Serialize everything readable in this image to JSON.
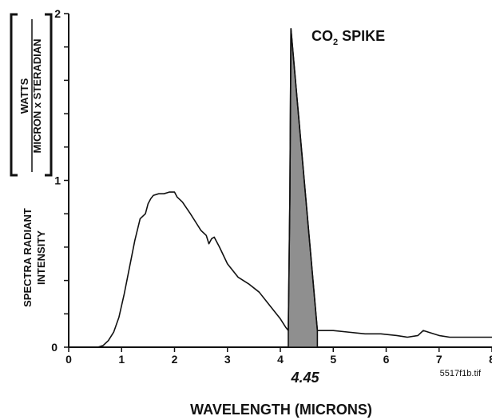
{
  "chart_data": {
    "type": "line",
    "title": {
      "text": "CO",
      "sub": "2",
      "suffix": " SPIKE"
    },
    "xlabel": "WAVELENGTH (MICRONS)",
    "ylabel": {
      "main_line1": "SPECTRA RADIANT",
      "main_line2": "INTENSITY",
      "unit_numerator": "WATTS",
      "unit_denominator": "MICRON x STERADIAN"
    },
    "xlim": [
      0,
      8
    ],
    "ylim": [
      0,
      2
    ],
    "x_ticks": [
      "0",
      "1",
      "2",
      "3",
      "4",
      "5",
      "6",
      "7",
      "8"
    ],
    "y_ticks": [
      {
        "label": "0",
        "value": 0
      },
      {
        "label": "1",
        "value": 1
      },
      {
        "label": "2",
        "value": 2
      }
    ],
    "y_minor_step": 0.2,
    "annotation": {
      "text": "4.45",
      "x": 4.45
    },
    "footnote": "5517f1b.tif",
    "series": [
      {
        "x": [
          0.55,
          0.65,
          0.75,
          0.85,
          0.95,
          1.05,
          1.15,
          1.25,
          1.35,
          1.45,
          1.5,
          1.55,
          1.6,
          1.7,
          1.8,
          1.9,
          2.0,
          2.05,
          2.15,
          2.3,
          2.4,
          2.5,
          2.6,
          2.65,
          2.7,
          2.75,
          2.85,
          3.0,
          3.2,
          3.4,
          3.6,
          3.8,
          4.0,
          4.1,
          4.15,
          4.18,
          4.2,
          4.7,
          5.0,
          5.3,
          5.6,
          5.9,
          6.2,
          6.4,
          6.6,
          6.7,
          6.8,
          7.0,
          7.2,
          7.5,
          8.0
        ],
        "values": [
          0.0,
          0.01,
          0.04,
          0.09,
          0.18,
          0.32,
          0.48,
          0.64,
          0.77,
          0.8,
          0.86,
          0.89,
          0.91,
          0.92,
          0.92,
          0.93,
          0.93,
          0.9,
          0.87,
          0.8,
          0.75,
          0.7,
          0.67,
          0.62,
          0.65,
          0.66,
          0.6,
          0.5,
          0.42,
          0.38,
          0.33,
          0.25,
          0.17,
          0.12,
          0.1,
          0.9,
          1.91,
          0.1,
          0.1,
          0.09,
          0.08,
          0.08,
          0.07,
          0.06,
          0.07,
          0.1,
          0.09,
          0.07,
          0.06,
          0.06,
          0.06
        ],
        "color": "#111111"
      }
    ],
    "highlight": {
      "from_x": 4.15,
      "to_x": 4.7,
      "fill": "#8f8f8f"
    }
  }
}
